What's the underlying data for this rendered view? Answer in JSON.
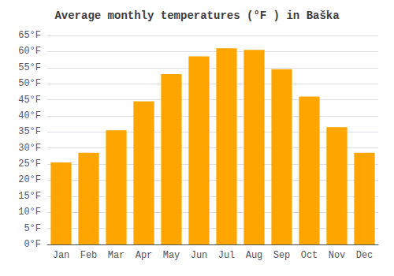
{
  "chart_data": {
    "type": "bar",
    "title": "Average monthly temperatures (°F ) in Baška",
    "categories": [
      "Jan",
      "Feb",
      "Mar",
      "Apr",
      "May",
      "Jun",
      "Jul",
      "Aug",
      "Sep",
      "Oct",
      "Nov",
      "Dec"
    ],
    "values": [
      25.5,
      28.5,
      35.5,
      44.5,
      53.0,
      58.5,
      61.0,
      60.5,
      54.5,
      46.0,
      36.5,
      28.5
    ],
    "color": "#FFA500",
    "ylim": [
      0,
      65
    ],
    "yticks": [
      {
        "value": 0,
        "label": "0°F"
      },
      {
        "value": 5,
        "label": "5°F"
      },
      {
        "value": 10,
        "label": "10°F"
      },
      {
        "value": 15,
        "label": "15°F"
      },
      {
        "value": 20,
        "label": "20°F"
      },
      {
        "value": 25,
        "label": "25°F"
      },
      {
        "value": 30,
        "label": "30°F"
      },
      {
        "value": 35,
        "label": "35°F"
      },
      {
        "value": 40,
        "label": "40°F"
      },
      {
        "value": 45,
        "label": "45°F"
      },
      {
        "value": 50,
        "label": "50°F"
      },
      {
        "value": 55,
        "label": "55°F"
      },
      {
        "value": 60,
        "label": "60°F"
      },
      {
        "value": 65,
        "label": "65°F"
      }
    ],
    "grid": true
  }
}
